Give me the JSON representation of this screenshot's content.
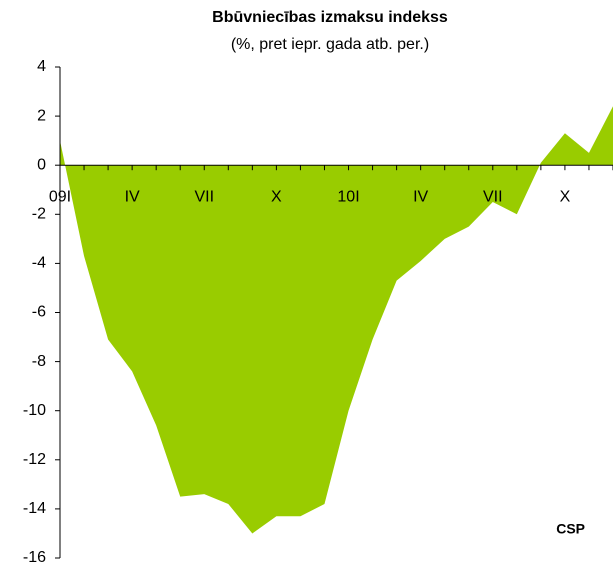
{
  "chart_data": {
    "type": "area",
    "title": "Bbūvniecības izmaksu indekss",
    "subtitle": "(%, pret iepr. gada atb. per.)",
    "annotation": "CSP",
    "color": "#99cc00",
    "categories": [
      "09I",
      null,
      null,
      "IV",
      null,
      null,
      "VII",
      null,
      null,
      "X",
      null,
      null,
      "10I",
      null,
      null,
      "IV",
      null,
      null,
      "VII",
      null,
      null,
      "X",
      null,
      null
    ],
    "values": [
      1.0,
      -3.7,
      -7.1,
      -8.4,
      -10.6,
      -13.5,
      -13.4,
      -13.8,
      -15.0,
      -14.3,
      -14.3,
      -13.8,
      -10.0,
      -7.1,
      -4.7,
      -3.9,
      -3.0,
      -2.5,
      -1.5,
      -2.0,
      0.1,
      1.3,
      0.5,
      2.4
    ],
    "ylim": [
      -16,
      4
    ],
    "yticks": [
      -16,
      -14,
      -12,
      -10,
      -8,
      -6,
      -4,
      -2,
      0,
      2,
      4
    ]
  }
}
